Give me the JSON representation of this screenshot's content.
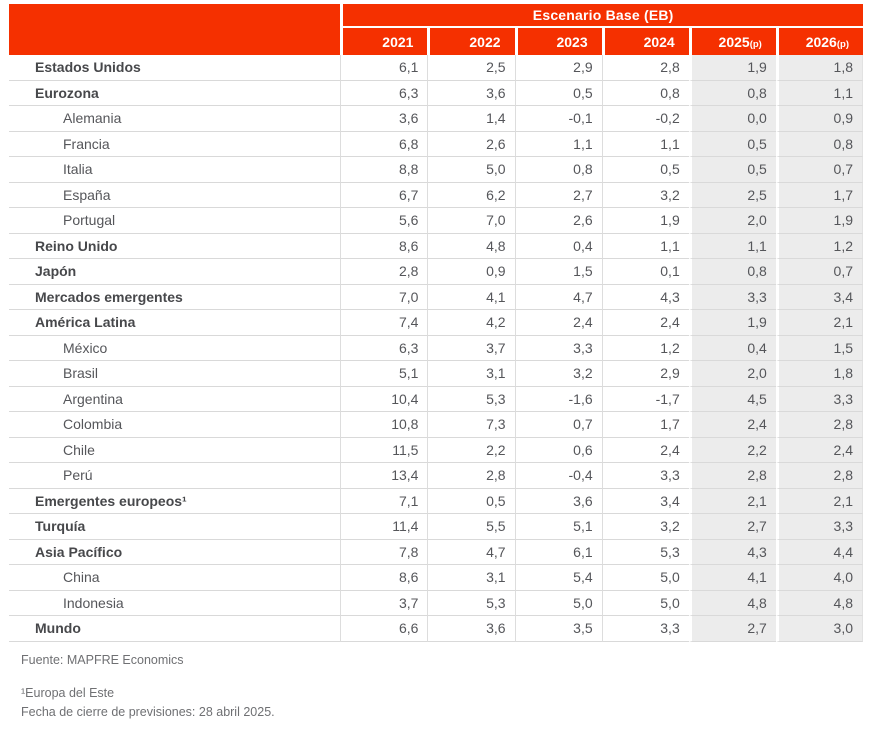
{
  "chart_data": {
    "type": "table",
    "title": "Escenario Base (EB)",
    "columns": [
      {
        "year": "2021",
        "suffix": "",
        "proj": false
      },
      {
        "year": "2022",
        "suffix": "",
        "proj": false
      },
      {
        "year": "2023",
        "suffix": "",
        "proj": false
      },
      {
        "year": "2024",
        "suffix": "",
        "proj": false
      },
      {
        "year": "2025",
        "suffix": "(p)",
        "proj": true
      },
      {
        "year": "2026",
        "suffix": "(p)",
        "proj": true
      }
    ],
    "rows": [
      {
        "label": "Estados Unidos",
        "bold": true,
        "indent": false,
        "values": [
          "6,1",
          "2,5",
          "2,9",
          "2,8",
          "1,9",
          "1,8"
        ]
      },
      {
        "label": "Eurozona",
        "bold": true,
        "indent": false,
        "values": [
          "6,3",
          "3,6",
          "0,5",
          "0,8",
          "0,8",
          "1,1"
        ]
      },
      {
        "label": "Alemania",
        "bold": false,
        "indent": true,
        "values": [
          "3,6",
          "1,4",
          "-0,1",
          "-0,2",
          "0,0",
          "0,9"
        ]
      },
      {
        "label": "Francia",
        "bold": false,
        "indent": true,
        "values": [
          "6,8",
          "2,6",
          "1,1",
          "1,1",
          "0,5",
          "0,8"
        ]
      },
      {
        "label": "Italia",
        "bold": false,
        "indent": true,
        "values": [
          "8,8",
          "5,0",
          "0,8",
          "0,5",
          "0,5",
          "0,7"
        ]
      },
      {
        "label": "España",
        "bold": false,
        "indent": true,
        "values": [
          "6,7",
          "6,2",
          "2,7",
          "3,2",
          "2,5",
          "1,7"
        ]
      },
      {
        "label": "Portugal",
        "bold": false,
        "indent": true,
        "values": [
          "5,6",
          "7,0",
          "2,6",
          "1,9",
          "2,0",
          "1,9"
        ]
      },
      {
        "label": "Reino Unido",
        "bold": true,
        "indent": false,
        "values": [
          "8,6",
          "4,8",
          "0,4",
          "1,1",
          "1,1",
          "1,2"
        ]
      },
      {
        "label": "Japón",
        "bold": true,
        "indent": false,
        "values": [
          "2,8",
          "0,9",
          "1,5",
          "0,1",
          "0,8",
          "0,7"
        ]
      },
      {
        "label": "Mercados emergentes",
        "bold": true,
        "indent": false,
        "values": [
          "7,0",
          "4,1",
          "4,7",
          "4,3",
          "3,3",
          "3,4"
        ]
      },
      {
        "label": "América Latina",
        "bold": true,
        "indent": false,
        "values": [
          "7,4",
          "4,2",
          "2,4",
          "2,4",
          "1,9",
          "2,1"
        ]
      },
      {
        "label": "México",
        "bold": false,
        "indent": true,
        "values": [
          "6,3",
          "3,7",
          "3,3",
          "1,2",
          "0,4",
          "1,5"
        ]
      },
      {
        "label": "Brasil",
        "bold": false,
        "indent": true,
        "values": [
          "5,1",
          "3,1",
          "3,2",
          "2,9",
          "2,0",
          "1,8"
        ]
      },
      {
        "label": "Argentina",
        "bold": false,
        "indent": true,
        "values": [
          "10,4",
          "5,3",
          "-1,6",
          "-1,7",
          "4,5",
          "3,3"
        ]
      },
      {
        "label": "Colombia",
        "bold": false,
        "indent": true,
        "values": [
          "10,8",
          "7,3",
          "0,7",
          "1,7",
          "2,4",
          "2,8"
        ]
      },
      {
        "label": "Chile",
        "bold": false,
        "indent": true,
        "values": [
          "11,5",
          "2,2",
          "0,6",
          "2,4",
          "2,2",
          "2,4"
        ]
      },
      {
        "label": "Perú",
        "bold": false,
        "indent": true,
        "values": [
          "13,4",
          "2,8",
          "-0,4",
          "3,3",
          "2,8",
          "2,8"
        ]
      },
      {
        "label": "Emergentes europeos¹",
        "bold": true,
        "indent": false,
        "values": [
          "7,1",
          "0,5",
          "3,6",
          "3,4",
          "2,1",
          "2,1"
        ]
      },
      {
        "label": "Turquía",
        "bold": true,
        "indent": false,
        "values": [
          "11,4",
          "5,5",
          "5,1",
          "3,2",
          "2,7",
          "3,3"
        ]
      },
      {
        "label": "Asia Pacífico",
        "bold": true,
        "indent": false,
        "values": [
          "7,8",
          "4,7",
          "6,1",
          "5,3",
          "4,3",
          "4,4"
        ]
      },
      {
        "label": "China",
        "bold": false,
        "indent": true,
        "values": [
          "8,6",
          "3,1",
          "5,4",
          "5,0",
          "4,1",
          "4,0"
        ]
      },
      {
        "label": "Indonesia",
        "bold": false,
        "indent": true,
        "values": [
          "3,7",
          "5,3",
          "5,0",
          "5,0",
          "4,8",
          "4,8"
        ]
      },
      {
        "label": "Mundo",
        "bold": true,
        "indent": false,
        "values": [
          "6,6",
          "3,6",
          "3,5",
          "3,3",
          "2,7",
          "3,0"
        ]
      }
    ]
  },
  "footer": {
    "source": "Fuente: MAPFRE Economics",
    "note1": "¹Europa del Este",
    "note2": "Fecha de cierre de previsiones: 28 abril 2025."
  },
  "colors": {
    "header_red": "#F53000",
    "projection_column_bg": "#ECECEC",
    "row_line": "#D9D9D9",
    "body_text": "#55565A",
    "footer_text": "#6F7073"
  }
}
